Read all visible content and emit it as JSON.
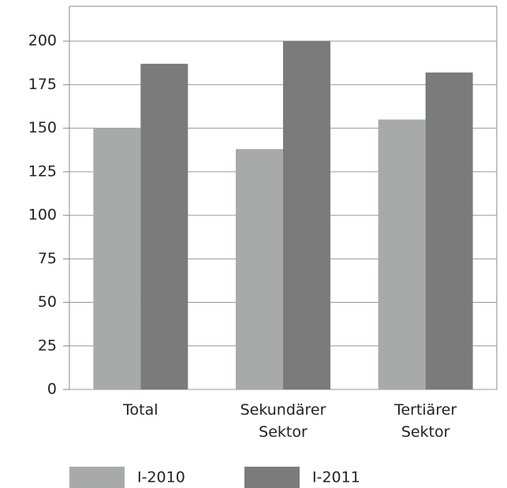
{
  "chart_data": {
    "type": "bar",
    "categories": [
      "Total",
      "Sekundärer Sektor",
      "Tertiärer Sektor"
    ],
    "series": [
      {
        "name": "I-2010",
        "color": "#a8aaa9",
        "values": [
          150,
          138,
          155
        ]
      },
      {
        "name": "I-2011",
        "color": "#7b7b7b",
        "values": [
          187,
          200,
          182
        ]
      }
    ],
    "ylim": [
      0,
      220
    ],
    "yticks": [
      0,
      25,
      50,
      75,
      100,
      125,
      150,
      175,
      200
    ],
    "grid": true
  }
}
